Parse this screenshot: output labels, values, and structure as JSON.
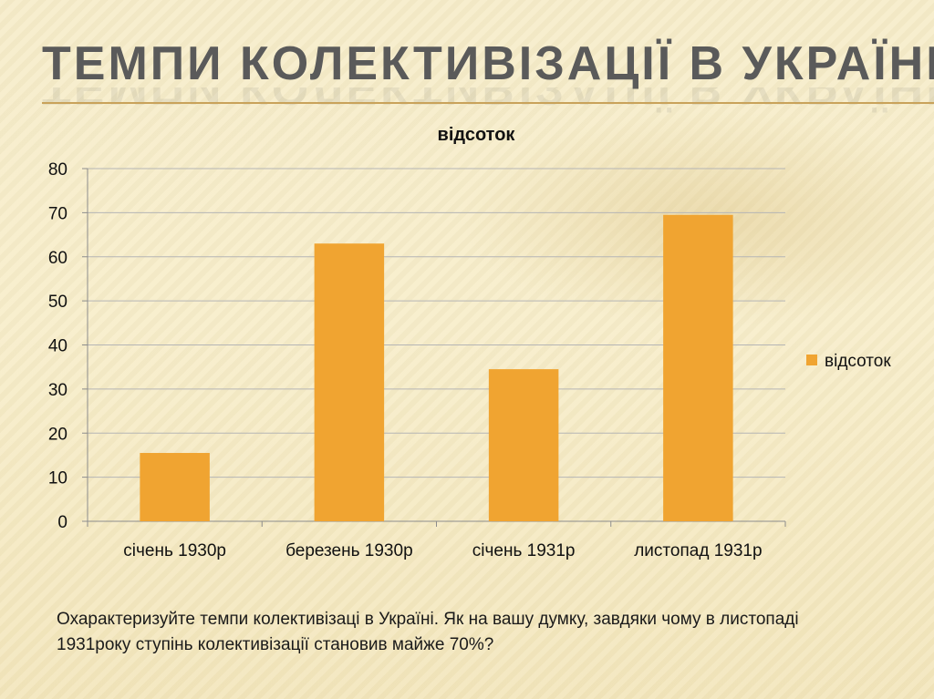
{
  "slide": {
    "title": "Темпи колективізації в Україні.",
    "question": "Охарактеризуйте темпи колективізаці в Україні. Як на вашу думку, завдяки чому в листопаді 1931року ступінь колективізації становив майже 70%?"
  },
  "colors": {
    "bar": "#f0a431",
    "grid": "#b5b5b5",
    "axis": "#8c8c8c",
    "title_text": "#5a5a5a",
    "rule": "#c9a25a"
  },
  "chart_data": {
    "type": "bar",
    "title": "відсоток",
    "categories": [
      "січень 1930р",
      "березень 1930р",
      "січень 1931р",
      "листопад 1931р"
    ],
    "series": [
      {
        "name": "відсоток",
        "values": [
          15.5,
          63,
          34.5,
          69.5
        ]
      }
    ],
    "ylim": [
      0,
      80
    ],
    "yticks": [
      0,
      10,
      20,
      30,
      40,
      50,
      60,
      70,
      80
    ],
    "grid": true,
    "legend": "right"
  }
}
